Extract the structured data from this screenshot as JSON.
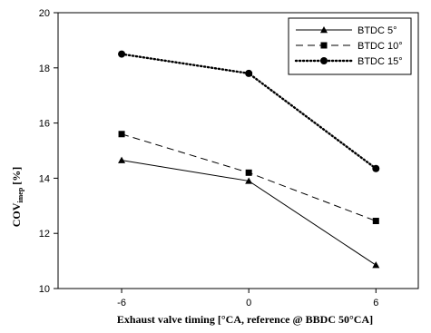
{
  "chart_data": {
    "type": "line",
    "x_categories": [
      "-6",
      "0",
      "6"
    ],
    "x": [
      -6,
      0,
      6
    ],
    "xlim": [
      -9,
      8
    ],
    "ylim": [
      10,
      20
    ],
    "yticks": [
      10,
      12,
      14,
      16,
      18,
      20
    ],
    "xlabel": "Exhaust valve timing [°CA, reference @ BBDC 50°CA]",
    "ylabel": "COV",
    "ylabel_subscript": "imep",
    "ylabel_suffix": " [%]",
    "legend_position": "top-right",
    "grid": false,
    "series": [
      {
        "name": "BTDC 5°",
        "marker": "triangle",
        "line": "solid",
        "values": [
          14.65,
          13.9,
          10.85
        ]
      },
      {
        "name": "BTDC 10°",
        "marker": "square",
        "line": "dashed",
        "values": [
          15.6,
          14.2,
          12.45
        ]
      },
      {
        "name": "BTDC 15°",
        "marker": "circle",
        "line": "dotted",
        "values": [
          18.5,
          17.8,
          14.35
        ]
      }
    ]
  }
}
